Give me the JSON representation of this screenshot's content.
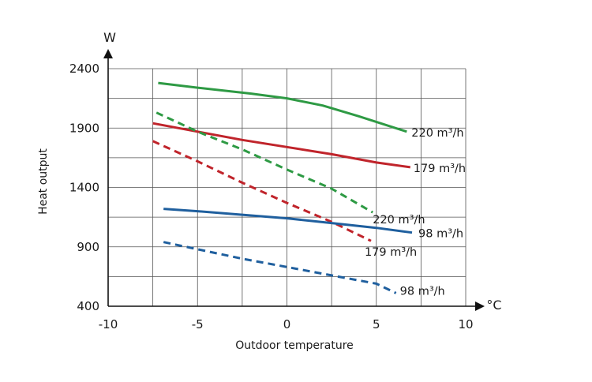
{
  "chart_data": {
    "type": "line",
    "xlabel": "Outdoor temperature",
    "ylabel": "Heat output",
    "x_unit": "°C",
    "y_unit": "W",
    "xlim": [
      -10,
      10
    ],
    "ylim": [
      400,
      2400
    ],
    "x_ticks": [
      -10,
      -5,
      0,
      5,
      10
    ],
    "y_ticks": [
      400,
      900,
      1400,
      1900,
      2400
    ],
    "grid": true,
    "series": [
      {
        "name": "220 m³/h",
        "color": "#2e9a44",
        "style": "solid",
        "x": [
          -7.2,
          -5,
          -2,
          0,
          2,
          4,
          6.7
        ],
        "y": [
          2280,
          2240,
          2190,
          2150,
          2090,
          2000,
          1870
        ]
      },
      {
        "name": "179 m³/h",
        "color": "#c0242b",
        "style": "solid",
        "x": [
          -7.5,
          -5,
          -2.5,
          0,
          2.5,
          5,
          6.9
        ],
        "y": [
          1940,
          1870,
          1800,
          1740,
          1680,
          1610,
          1570
        ]
      },
      {
        "name": "220 m³/h",
        "color": "#2e9a44",
        "style": "dashed",
        "x": [
          -7.3,
          -5,
          -2.5,
          0,
          2.5,
          4.8
        ],
        "y": [
          2030,
          1870,
          1720,
          1550,
          1390,
          1190
        ]
      },
      {
        "name": "179 m³/h",
        "color": "#c0242b",
        "style": "dashed",
        "x": [
          -7.5,
          -5,
          -2.5,
          0,
          2.5,
          4.7
        ],
        "y": [
          1790,
          1620,
          1440,
          1270,
          1110,
          950
        ]
      },
      {
        "name": "98 m³/h",
        "color": "#1f5f9e",
        "style": "solid",
        "x": [
          -6.9,
          -5,
          -2.5,
          0,
          2.5,
          5,
          7
        ],
        "y": [
          1220,
          1200,
          1170,
          1140,
          1100,
          1060,
          1020
        ]
      },
      {
        "name": "98 m³/h",
        "color": "#1f5f9e",
        "style": "dashed",
        "x": [
          -6.9,
          -5,
          -2.5,
          0,
          2.5,
          5,
          6.1
        ],
        "y": [
          940,
          880,
          800,
          730,
          660,
          590,
          510
        ]
      }
    ]
  }
}
